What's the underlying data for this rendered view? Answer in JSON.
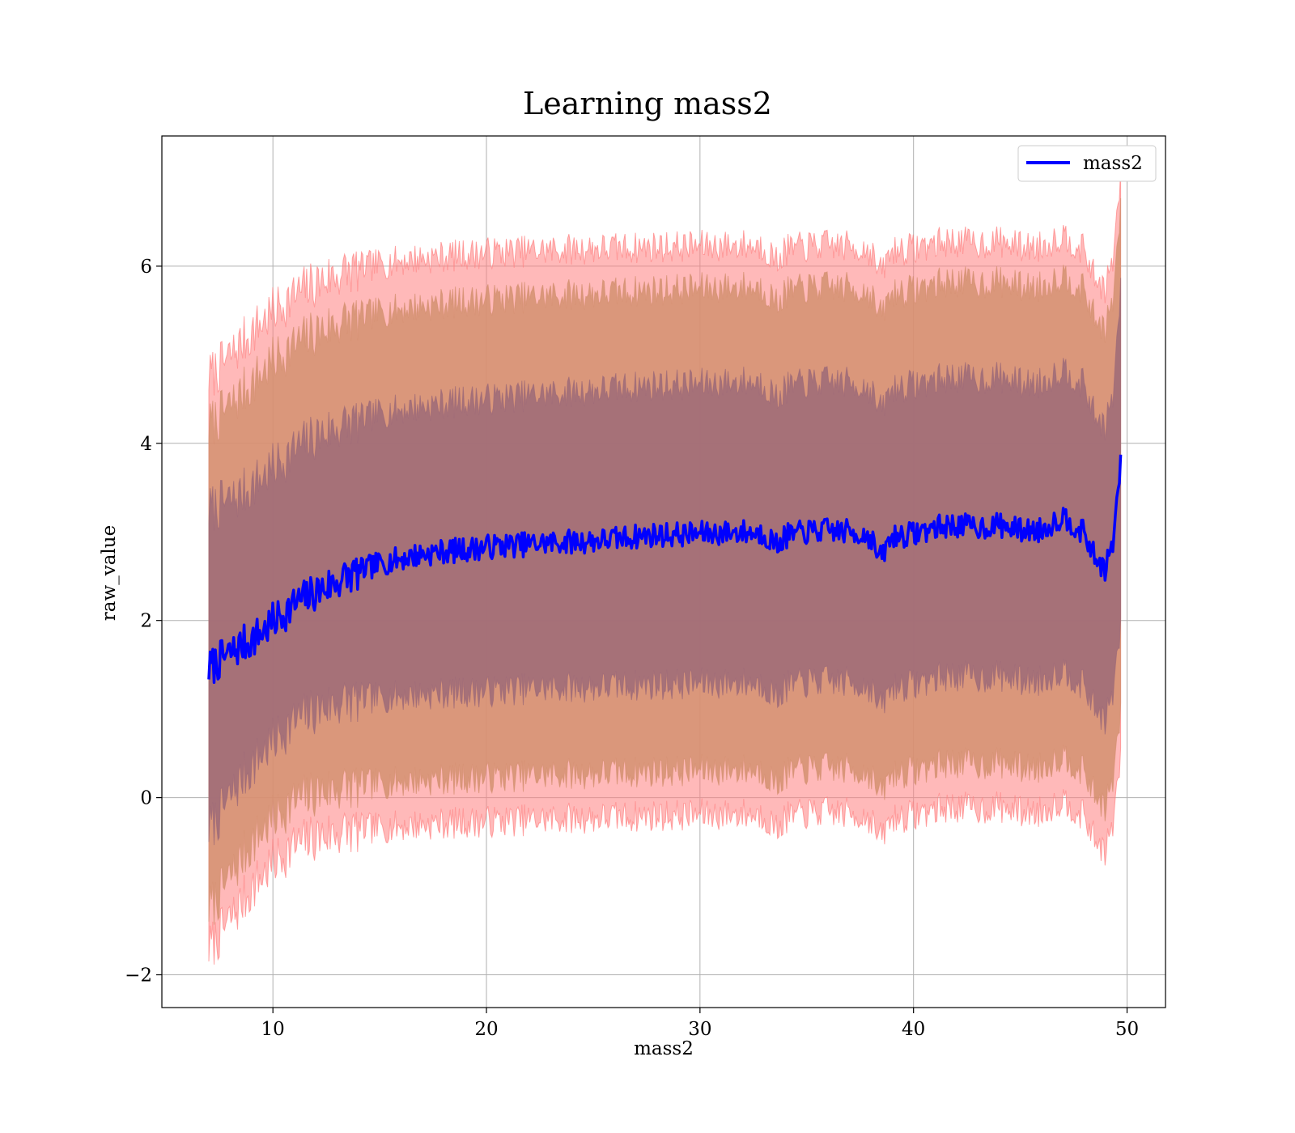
{
  "chart_data": {
    "type": "line",
    "title": "Learning mass2",
    "xlabel": "mass2",
    "ylabel": "raw_value",
    "xlim": [
      4.8,
      51.8
    ],
    "ylim": [
      -2.37,
      7.47
    ],
    "x_ticks": [
      10,
      20,
      30,
      40,
      50
    ],
    "y_ticks": [
      -2,
      0,
      2,
      4,
      6
    ],
    "x_tick_labels": [
      "10",
      "20",
      "30",
      "40",
      "50"
    ],
    "y_tick_labels": [
      "−2",
      "0",
      "2",
      "4",
      "6"
    ],
    "grid": true,
    "legend_position": "top-right",
    "series": [
      {
        "name": "mass2",
        "color": "#0000ff",
        "x": [
          7.0,
          7.5,
          8.0,
          8.5,
          9.0,
          9.5,
          10.0,
          10.5,
          11.0,
          11.5,
          12.0,
          12.5,
          13.0,
          13.5,
          14.0,
          14.5,
          15.0,
          16.0,
          17.0,
          18.0,
          19.0,
          20.0,
          21.0,
          22.0,
          23.0,
          24.0,
          25.0,
          26.0,
          27.0,
          28.0,
          29.0,
          30.0,
          31.0,
          32.0,
          33.0,
          33.6,
          34.0,
          35.0,
          36.0,
          37.0,
          38.0,
          38.4,
          39.0,
          40.0,
          41.0,
          42.0,
          43.0,
          44.0,
          45.0,
          46.0,
          47.0,
          48.0,
          48.5,
          49.0,
          49.4,
          49.7
        ],
        "values": [
          1.45,
          1.55,
          1.62,
          1.72,
          1.78,
          1.87,
          1.98,
          2.08,
          2.18,
          2.25,
          2.32,
          2.38,
          2.44,
          2.5,
          2.55,
          2.6,
          2.64,
          2.7,
          2.75,
          2.78,
          2.8,
          2.83,
          2.85,
          2.86,
          2.88,
          2.89,
          2.9,
          2.92,
          2.95,
          2.97,
          2.97,
          2.98,
          2.99,
          3.0,
          2.98,
          2.85,
          2.95,
          3.0,
          3.02,
          3.0,
          2.95,
          2.68,
          2.95,
          2.98,
          3.05,
          3.08,
          3.05,
          3.08,
          3.02,
          3.02,
          3.18,
          2.98,
          2.7,
          2.58,
          2.95,
          3.82
        ],
        "band_1sd": {
          "lower": [
            -0.35,
            -0.2,
            0.0,
            0.2,
            0.35,
            0.5,
            0.62,
            0.75,
            0.85,
            0.92,
            0.98,
            1.03,
            1.06,
            1.09,
            1.11,
            1.12,
            1.13,
            1.15,
            1.17,
            1.18,
            1.19,
            1.2,
            1.22,
            1.23,
            1.24,
            1.25,
            1.25,
            1.26,
            1.27,
            1.28,
            1.28,
            1.29,
            1.29,
            1.3,
            1.28,
            1.12,
            1.25,
            1.3,
            1.32,
            1.3,
            1.25,
            1.0,
            1.25,
            1.28,
            1.35,
            1.38,
            1.35,
            1.38,
            1.32,
            1.32,
            1.45,
            1.25,
            1.0,
            0.88,
            1.25,
            1.95
          ],
          "upper": [
            3.25,
            3.3,
            3.35,
            3.42,
            3.52,
            3.62,
            3.72,
            3.82,
            3.92,
            4.0,
            4.08,
            4.13,
            4.18,
            4.22,
            4.26,
            4.3,
            4.34,
            4.38,
            4.42,
            4.45,
            4.48,
            4.5,
            4.52,
            4.54,
            4.56,
            4.58,
            4.6,
            4.62,
            4.64,
            4.66,
            4.66,
            4.67,
            4.68,
            4.7,
            4.68,
            4.5,
            4.62,
            4.68,
            4.7,
            4.68,
            4.62,
            4.35,
            4.62,
            4.66,
            4.72,
            4.75,
            4.72,
            4.75,
            4.68,
            4.68,
            4.85,
            4.65,
            4.3,
            4.2,
            4.62,
            5.8
          ]
        },
        "band_2sd": {
          "lower": [
            -1.25,
            -1.1,
            -0.9,
            -0.7,
            -0.52,
            -0.38,
            -0.25,
            -0.14,
            -0.05,
            0.0,
            0.05,
            0.08,
            0.1,
            0.12,
            0.14,
            0.15,
            0.16,
            0.18,
            0.2,
            0.21,
            0.22,
            0.23,
            0.24,
            0.25,
            0.26,
            0.27,
            0.27,
            0.28,
            0.29,
            0.3,
            0.3,
            0.31,
            0.31,
            0.32,
            0.3,
            0.14,
            0.27,
            0.32,
            0.34,
            0.32,
            0.27,
            0.02,
            0.27,
            0.3,
            0.37,
            0.4,
            0.37,
            0.4,
            0.34,
            0.34,
            0.48,
            0.28,
            0.02,
            -0.1,
            0.27,
            1.0
          ],
          "upper": [
            4.2,
            4.3,
            4.42,
            4.55,
            4.68,
            4.8,
            4.92,
            5.02,
            5.1,
            5.18,
            5.25,
            5.3,
            5.35,
            5.39,
            5.42,
            5.45,
            5.48,
            5.52,
            5.55,
            5.58,
            5.6,
            5.62,
            5.64,
            5.65,
            5.67,
            5.68,
            5.69,
            5.7,
            5.72,
            5.73,
            5.74,
            5.75,
            5.76,
            5.77,
            5.75,
            5.58,
            5.7,
            5.75,
            5.77,
            5.75,
            5.7,
            5.42,
            5.7,
            5.73,
            5.8,
            5.83,
            5.8,
            5.83,
            5.77,
            5.77,
            5.9,
            5.72,
            5.4,
            5.3,
            5.7,
            6.7
          ]
        },
        "band_3sd": {
          "lower": [
            -1.7,
            -1.55,
            -1.38,
            -1.2,
            -1.03,
            -0.88,
            -0.75,
            -0.64,
            -0.55,
            -0.5,
            -0.45,
            -0.42,
            -0.4,
            -0.38,
            -0.36,
            -0.35,
            -0.34,
            -0.32,
            -0.3,
            -0.29,
            -0.28,
            -0.27,
            -0.26,
            -0.25,
            -0.24,
            -0.23,
            -0.23,
            -0.22,
            -0.21,
            -0.2,
            -0.2,
            -0.19,
            -0.19,
            -0.18,
            -0.2,
            -0.36,
            -0.23,
            -0.18,
            -0.16,
            -0.18,
            -0.23,
            -0.48,
            -0.23,
            -0.2,
            -0.13,
            -0.1,
            -0.13,
            -0.1,
            -0.16,
            -0.16,
            -0.02,
            -0.22,
            -0.48,
            -0.6,
            -0.23,
            0.5
          ],
          "upper": [
            4.75,
            4.85,
            4.98,
            5.12,
            5.25,
            5.37,
            5.48,
            5.58,
            5.66,
            5.74,
            5.8,
            5.86,
            5.9,
            5.94,
            5.97,
            6.0,
            6.02,
            6.06,
            6.09,
            6.11,
            6.13,
            6.15,
            6.16,
            6.17,
            6.18,
            6.19,
            6.2,
            6.2,
            6.21,
            6.22,
            6.22,
            6.23,
            6.23,
            6.24,
            6.22,
            6.05,
            6.18,
            6.22,
            6.24,
            6.22,
            6.18,
            5.9,
            6.18,
            6.2,
            6.26,
            6.28,
            6.25,
            6.28,
            6.22,
            6.22,
            6.35,
            6.17,
            5.85,
            5.75,
            6.15,
            7.05
          ]
        }
      }
    ],
    "band_colors": {
      "band_3sd": "#ff8080",
      "band_2sd": "#d49070",
      "band_1sd": "#9c6a78"
    }
  }
}
